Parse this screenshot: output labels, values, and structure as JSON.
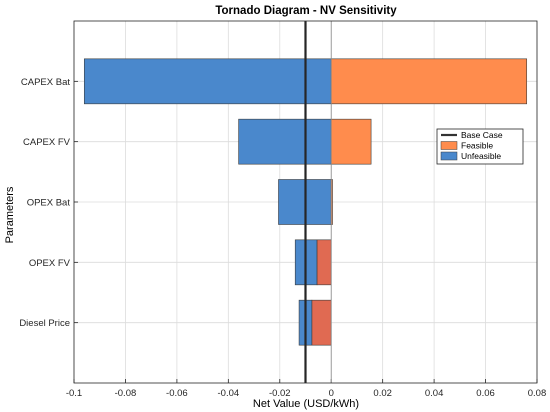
{
  "chart_data": {
    "type": "bar",
    "orientation": "horizontal",
    "title": "Tornado Diagram - NV Sensitivity",
    "xlabel": "Net Value (USD/kWh)",
    "ylabel": "Parameters",
    "xlim": [
      -0.1,
      0.08
    ],
    "xticks": [
      -0.1,
      -0.08,
      -0.06,
      -0.04,
      -0.02,
      0,
      0.02,
      0.04,
      0.06,
      0.08
    ],
    "xtick_labels": [
      "-0.1",
      "-0.08",
      "-0.06",
      "-0.04",
      "-0.02",
      "0",
      "0.02",
      "0.04",
      "0.06",
      "0.08"
    ],
    "categories": [
      "CAPEX Bat",
      "CAPEX FV",
      "OPEX Bat",
      "OPEX FV",
      "Diesel Price"
    ],
    "base_case": -0.01,
    "grid": true,
    "legend_position": "right",
    "legend": [
      {
        "label": "Base Case",
        "kind": "line",
        "color": "#333333"
      },
      {
        "label": "Feasible",
        "kind": "patch",
        "color": "#ff8c4d"
      },
      {
        "label": "Unfeasible",
        "kind": "patch",
        "color": "#4a88cc"
      }
    ],
    "bars": [
      {
        "category": "CAPEX Bat",
        "segments": [
          {
            "from": -0.096,
            "to": 0.0,
            "color": "#4a88cc"
          },
          {
            "from": 0.0,
            "to": 0.076,
            "color": "#ff8c4d"
          }
        ]
      },
      {
        "category": "CAPEX FV",
        "segments": [
          {
            "from": -0.036,
            "to": 0.0,
            "color": "#4a88cc"
          },
          {
            "from": 0.0,
            "to": 0.0155,
            "color": "#ff8c4d"
          }
        ]
      },
      {
        "category": "OPEX Bat",
        "segments": [
          {
            "from": -0.0205,
            "to": 0.0,
            "color": "#4a88cc"
          },
          {
            "from": 0.0,
            "to": 0.0005,
            "color": "#ff8c4d"
          }
        ]
      },
      {
        "category": "OPEX FV",
        "segments": [
          {
            "from": -0.014,
            "to": -0.0055,
            "color": "#4a88cc"
          },
          {
            "from": -0.0055,
            "to": 0.0,
            "color": "#e06a52"
          }
        ]
      },
      {
        "category": "Diesel Price",
        "segments": [
          {
            "from": -0.0125,
            "to": -0.0075,
            "color": "#4a88cc"
          },
          {
            "from": -0.0075,
            "to": 0.0,
            "color": "#e06a52"
          }
        ]
      }
    ]
  }
}
